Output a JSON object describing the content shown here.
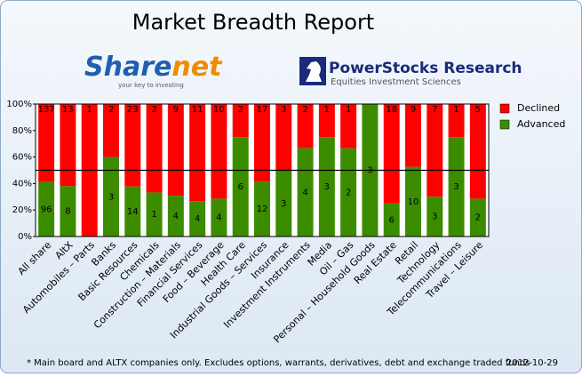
{
  "chart_data": {
    "type": "stacked_bar_percent",
    "title": "Market Breadth Report",
    "categories": [
      "All share",
      "AltX",
      "Automobiles – Parts",
      "Banks",
      "Basic Resources",
      "Chemicals",
      "Construction – Materials",
      "Financial Services",
      "Food – Beverage",
      "Health Care",
      "Industrial Goods – Services",
      "Insurance",
      "Investment Instruments",
      "Media",
      "Oil – Gas",
      "Personal – Household Goods",
      "Real Estate",
      "Retail",
      "Technology",
      "Telecommunications",
      "Travel – Leisure"
    ],
    "series": [
      {
        "name": "Advanced",
        "color": "#3c8c00",
        "values": [
          41.2,
          38.1,
          0,
          60,
          37.8,
          33.3,
          30.8,
          26.7,
          28.6,
          75,
          41.4,
          50,
          66.7,
          75,
          66.7,
          100,
          25,
          52.6,
          30,
          75,
          28.6
        ],
        "counts": [
          96,
          8,
          null,
          3,
          14,
          1,
          4,
          4,
          4,
          6,
          12,
          3,
          4,
          3,
          2,
          3,
          6,
          10,
          3,
          3,
          2
        ]
      },
      {
        "name": "Declined",
        "color": "#ff0000",
        "values": [
          58.8,
          61.9,
          100,
          40,
          62.2,
          66.7,
          69.2,
          73.3,
          71.4,
          25,
          58.6,
          50,
          33.3,
          25,
          33.3,
          0,
          75,
          47.4,
          70,
          25,
          71.4
        ],
        "counts": [
          137,
          13,
          1,
          2,
          23,
          2,
          9,
          11,
          10,
          2,
          17,
          3,
          2,
          1,
          1,
          null,
          18,
          9,
          7,
          1,
          5
        ]
      }
    ],
    "ylim": [
      0,
      100
    ],
    "yticks": [
      {
        "value": 0,
        "label": "0%"
      },
      {
        "value": 20,
        "label": "20%"
      },
      {
        "value": 40,
        "label": "40%"
      },
      {
        "value": 60,
        "label": "60%"
      },
      {
        "value": 80,
        "label": "80%"
      },
      {
        "value": 100,
        "label": "100%"
      }
    ],
    "reference_line": 50,
    "legend": "right"
  },
  "logos": {
    "sharenet": [
      "Share",
      "net"
    ],
    "sharenet_tagline": "your key to investing",
    "powerstocks": "PowerStocks  Research",
    "powerstocks_tagline": "Equities Investment Sciences"
  },
  "footnote": "* Main board and ALTX companies only. Excludes options, warrants, derivatives, debt and exchange traded funds",
  "date": "2012-10-29"
}
